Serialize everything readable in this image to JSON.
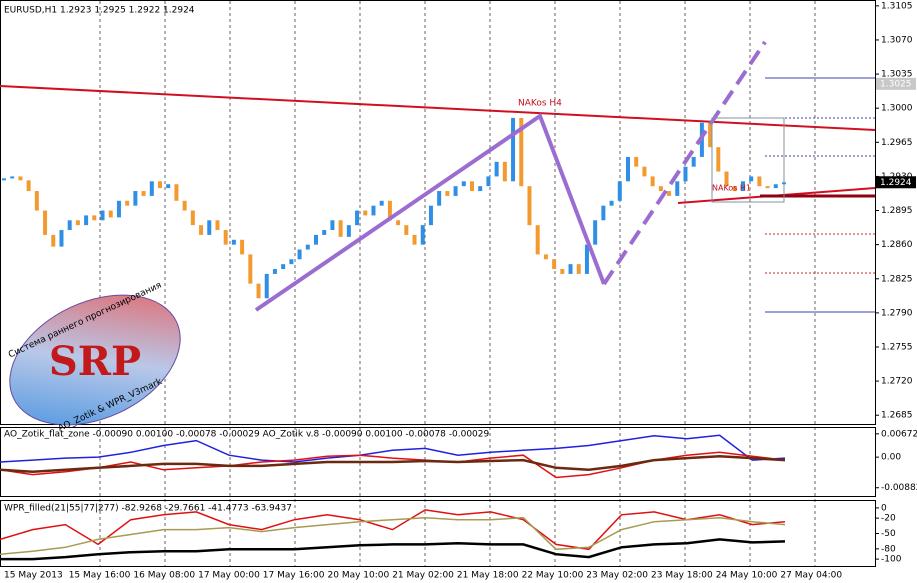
{
  "chart_data": {
    "type": "bar",
    "title": "EURUSD,H1  1.2923 1.2925 1.2922 1.2924",
    "price": {
      "up_color": "#2f8ee5",
      "down_color": "#f39a2e",
      "values": [
        1.2928,
        1.293,
        1.2926,
        1.2915,
        1.2895,
        1.287,
        1.2858,
        1.2875,
        1.2885,
        1.288,
        1.289,
        1.2885,
        1.2895,
        1.2888,
        1.2905,
        1.29,
        1.2915,
        1.291,
        1.2925,
        1.2918,
        1.2922,
        1.2905,
        1.2895,
        1.288,
        1.287,
        1.2885,
        1.2875,
        1.286,
        1.2865,
        1.285,
        1.282,
        1.2805,
        1.283,
        1.2835,
        1.284,
        1.2845,
        1.2855,
        1.286,
        1.287,
        1.2875,
        1.2885,
        1.2868,
        1.288,
        1.2895,
        1.289,
        1.29,
        1.2905,
        1.2885,
        1.288,
        1.287,
        1.286,
        1.288,
        1.29,
        1.2915,
        1.291,
        1.292,
        1.2925,
        1.2915,
        1.292,
        1.293,
        1.2945,
        1.2925,
        1.299,
        1.292,
        1.288,
        1.285,
        1.2845,
        1.2835,
        1.283,
        1.284,
        1.283,
        1.286,
        1.2885,
        1.29,
        1.2905,
        1.2925,
        1.295,
        1.294,
        1.293,
        1.292,
        1.2915,
        1.291,
        1.2925,
        1.294,
        1.295,
        1.2985,
        1.296,
        1.2935,
        1.292,
        1.2915,
        1.2925,
        1.293,
        1.292,
        1.2918,
        1.2922,
        1.2924
      ],
      "ylim": [
        1.2676,
        1.3111
      ],
      "yticks": [
        1.3105,
        {
          "value": 1.307,
          "label": "1.3070"
        },
        1.3035,
        {
          "value": 1.3,
          "label": "1.3000"
        },
        1.2965,
        {
          "value": 1.293,
          "label": "1.2930"
        },
        1.2895,
        {
          "value": 1.286,
          "label": "1.2860"
        },
        1.2825,
        {
          "value": 1.279,
          "label": "1.2790"
        },
        1.2755,
        {
          "value": 1.272,
          "label": "1.2720"
        },
        1.2685
      ],
      "current_price": 1.2924,
      "marked_price": 1.3025,
      "annotations": [
        "NAKos H4",
        "NAKos H1"
      ]
    },
    "logo": {
      "caption": "Система раннего прогнозирования",
      "name": "SRP",
      "footer": "AO_Zotik & WPR_V3mark"
    },
    "ao": {
      "title": "AO_Zotik_flat_zone -0.00090 0.00100 -0.00078 -0.00029  AO_Zotik v.8 -0.00090 0.00100 -0.00078 -0.00029",
      "ylim": [
        -0.0112,
        0.0084
      ],
      "yticks": [
        0.00672,
        {
          "value": 0,
          "label": "0.00"
        },
        -0.00882
      ],
      "lines": [
        {
          "color": "#2020e0",
          "values": [
            -0.0014,
            -0.00084,
            -0.00028,
            0,
            0.0014,
            0.00336,
            0.00476,
            0.00056,
            -0.00084,
            -0.0014,
            -0.00028,
            0.00056,
            0.00196,
            0.00252,
            0.00056,
            0.0014,
            0.00196,
            0.00252,
            0.00336,
            0.00476,
            0.00616,
            0.00532,
            0.0063,
            -0.00084,
            -0.00028
          ]
        },
        {
          "color": "#e01010",
          "values": [
            -0.00364,
            -0.00504,
            -0.0042,
            -0.00308,
            -0.0014,
            -0.00364,
            -0.00308,
            -0.00252,
            -0.0014,
            -0.00084,
            0.00028,
            0.00056,
            -0.00028,
            -0.00084,
            -0.0014,
            -0.00028,
            0.00056,
            -0.00588,
            -0.00504,
            -0.00308,
            -0.00084,
            0.00056,
            0.0014,
            0.00028,
            -0.00084
          ]
        },
        {
          "color": "#6b2a10",
          "values": [
            -0.00364,
            -0.0042,
            -0.00364,
            -0.00308,
            -0.00252,
            -0.00196,
            -0.00196,
            -0.00252,
            -0.00252,
            -0.00196,
            -0.0014,
            -0.0014,
            -0.0014,
            -0.00112,
            -0.0014,
            -0.00112,
            -0.00084,
            -0.00308,
            -0.00364,
            -0.00252,
            -0.00084,
            -0.00028,
            0.00028,
            -0.00028,
            -0.00084
          ]
        }
      ]
    },
    "wpr": {
      "title": "WPR_filled(21|55|77|277) -82.9268 -29.7661 -41.4773 -63.9437",
      "ylim": [
        -113.5,
        13.5
      ],
      "yticks": [
        0,
        -20,
        -50,
        -80,
        -100
      ],
      "lines": [
        {
          "color": "#e01010",
          "values": [
            -61.5,
            -42.3,
            -32.7,
            -71.2,
            -23.1,
            -13.5,
            -7.7,
            -32.7,
            -42.3,
            -23.1,
            -13.5,
            -23.1,
            -42.3,
            -3.8,
            -13.5,
            -7.7,
            -23.1,
            -71.2,
            -80.8,
            -13.5,
            -7.7,
            -23.1,
            -13.5,
            -32.7,
            -26.9
          ]
        },
        {
          "color": "#a89a50",
          "values": [
            -90.4,
            -84.6,
            -76.9,
            -61.5,
            -51.9,
            -42.3,
            -42.3,
            -38.5,
            -46.2,
            -38.5,
            -32.7,
            -26.9,
            -23.1,
            -19.2,
            -23.1,
            -23.1,
            -19.2,
            -80.8,
            -76.9,
            -42.3,
            -26.9,
            -23.1,
            -19.2,
            -26.9,
            -32.7
          ]
        },
        {
          "color": "#000000",
          "values": [
            -100,
            -100,
            -96.2,
            -90.4,
            -86.5,
            -84.6,
            -84.6,
            -80.8,
            -80.8,
            -80.8,
            -76.9,
            -73.1,
            -71.2,
            -71.2,
            -69.2,
            -71.2,
            -71.2,
            -90.4,
            -96.2,
            -76.9,
            -71.2,
            -69.2,
            -61.5,
            -67.3,
            -65.4
          ]
        }
      ]
    },
    "time_labels": [
      "15 May 2013",
      "15 May 16:00",
      "16 May 08:00",
      "17 May 00:00",
      "17 May 16:00",
      "20 May 10:00",
      "21 May 02:00",
      "21 May 18:00",
      "22 May 10:00",
      "23 May 02:00",
      "23 May 18:00",
      "24 May 10:00",
      "27 May 04:00"
    ]
  }
}
